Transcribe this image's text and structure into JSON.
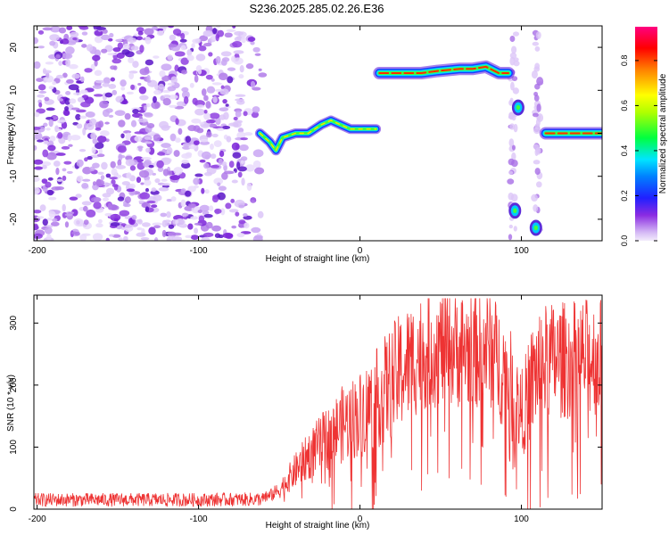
{
  "title": "S236.2025.285.02.26.E36",
  "chart_data": [
    {
      "type": "heatmap",
      "xlabel": "Height of straight line (km)",
      "ylabel": "Frequency (Hz)",
      "xlim": [
        -202,
        150
      ],
      "ylim": [
        -25,
        25
      ],
      "xticks": [
        -200,
        -100,
        0,
        100
      ],
      "yticks": [
        -20,
        -10,
        0,
        10,
        20
      ],
      "noise_region_km": [
        -202,
        -60
      ],
      "features": [
        {
          "name": "weak-track",
          "points": [
            [
              -62,
              0
            ],
            [
              -56,
              -2
            ],
            [
              -52,
              -4
            ],
            [
              -48,
              -1
            ],
            [
              -40,
              0
            ],
            [
              -32,
              0
            ],
            [
              -24,
              2
            ],
            [
              -18,
              3
            ],
            [
              -12,
              2
            ],
            [
              -6,
              1
            ],
            [
              0,
              1
            ],
            [
              10,
              1
            ]
          ]
        },
        {
          "name": "band-14hz",
          "points": [
            [
              12,
              14
            ],
            [
              28,
              14
            ],
            [
              38,
              14
            ],
            [
              48,
              14.5
            ],
            [
              62,
              15
            ],
            [
              70,
              15
            ],
            [
              78,
              15.5
            ],
            [
              86,
              14
            ],
            [
              92,
              14
            ]
          ]
        },
        {
          "name": "band-0hz",
          "points": [
            [
              115,
              0
            ],
            [
              150,
              0
            ]
          ]
        },
        {
          "name": "spot",
          "points": [
            [
              98,
              6
            ]
          ]
        },
        {
          "name": "spot",
          "points": [
            [
              96,
              -18
            ]
          ]
        },
        {
          "name": "spot",
          "points": [
            [
              109,
              -22
            ]
          ]
        }
      ],
      "colorbar": {
        "label": "Normalized spectral amplitude",
        "range": [
          0,
          0.95
        ],
        "ticks": [
          0.0,
          0.2,
          0.4,
          0.6,
          0.8
        ]
      }
    },
    {
      "type": "line",
      "xlabel": "Height of straight line (km)",
      "ylabel": "SNR (10 * v/v)",
      "xlim": [
        -202,
        150
      ],
      "ylim": [
        0,
        345
      ],
      "xticks": [
        -200,
        -100,
        0,
        100
      ],
      "yticks": [
        0,
        100,
        200,
        300
      ],
      "series": [
        {
          "name": "SNR",
          "color": "#ee3333",
          "envelope": {
            "x": [
              -202,
              -150,
              -100,
              -60,
              -50,
              -40,
              -30,
              -20,
              -10,
              0,
              10,
              20,
              30,
              40,
              50,
              60,
              70,
              80,
              90,
              100,
              110,
              120,
              130,
              140,
              150
            ],
            "y": [
              15,
              15,
              15,
              16,
              32,
              65,
              95,
              120,
              145,
              160,
              185,
              215,
              245,
              265,
              270,
              268,
              265,
              270,
              230,
              160,
              240,
              250,
              250,
              255,
              255
            ]
          }
        }
      ]
    }
  ]
}
